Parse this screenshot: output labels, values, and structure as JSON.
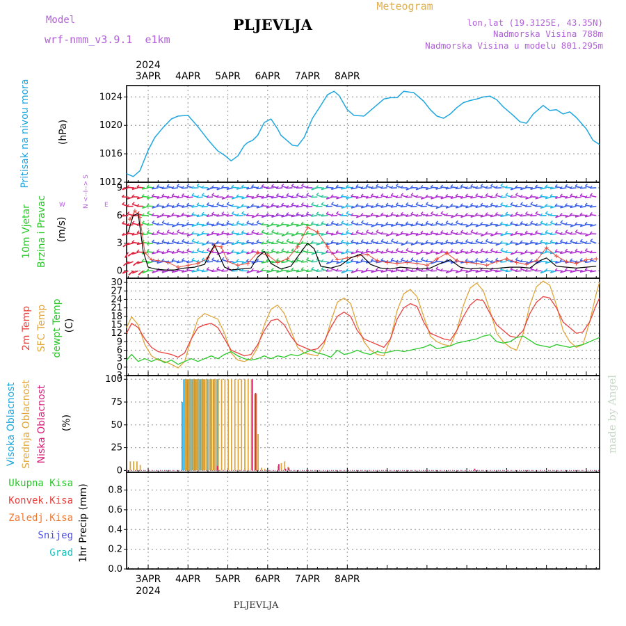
{
  "header": {
    "model_label": "Model",
    "model_name": "wrf-nmm_v3.9.1  e1km",
    "title": "PLJEVLJA",
    "product": "Meteogram",
    "coords": "lon,lat (19.3125E, 43.35N)",
    "elevation": "Nadmorska Visina 788m",
    "model_elevation": "Nadmorska Visina u modelu 801.295m"
  },
  "footer": {
    "station": "PLJEVLJA",
    "credit": "made by Angel"
  },
  "colors": {
    "pressure": "#1ea6e0",
    "temp2m": "#e8403c",
    "sfc_temp": "#e0a63a",
    "dewpoint": "#28c828",
    "high_cloud": "#1ea6e0",
    "mid_cloud": "#e0a63a",
    "low_cloud": "#d8207a",
    "gust": "#000000"
  },
  "chart_data": [
    {
      "type": "line",
      "panel": "pressure",
      "ylabel": [
        "Pritisak na nivou mora",
        "(hPa)"
      ],
      "year_label": "2024",
      "day_labels": [
        "3APR",
        "4APR",
        "5APR",
        "6APR",
        "7APR",
        "8APR"
      ],
      "x_range_hours": [
        -13,
        272
      ],
      "yticks": [
        1012,
        1016,
        1020,
        1024
      ],
      "ylim": [
        1012,
        1025.6
      ],
      "grid": true,
      "series": [
        {
          "x": [
            -13,
            -9,
            -5,
            0,
            4,
            9,
            14,
            18,
            24,
            30,
            36,
            40,
            42,
            46,
            50,
            54,
            58,
            60,
            63,
            66,
            70,
            74,
            78,
            80,
            83,
            87,
            90,
            94,
            99,
            104,
            108,
            112,
            115,
            118,
            120,
            124,
            130,
            136,
            142,
            146,
            150,
            154,
            160,
            166,
            170,
            174,
            178,
            182,
            186,
            190,
            194,
            198,
            202,
            206,
            210,
            214,
            220,
            224,
            228,
            232,
            238,
            242,
            246,
            250,
            254,
            258,
            264,
            268,
            272
          ],
          "y": [
            1013.2,
            1012.8,
            1013.6,
            1016.5,
            1018.3,
            1019.7,
            1020.9,
            1021.3,
            1021.4,
            1019.8,
            1018.0,
            1016.9,
            1016.4,
            1015.8,
            1015.0,
            1015.7,
            1017.2,
            1017.6,
            1017.9,
            1018.6,
            1020.4,
            1020.9,
            1019.5,
            1018.6,
            1018.0,
            1017.2,
            1017.1,
            1018.3,
            1021.0,
            1022.8,
            1024.3,
            1024.8,
            1024.2,
            1023.0,
            1022.2,
            1021.4,
            1021.3,
            1022.5,
            1023.7,
            1023.9,
            1023.9,
            1024.8,
            1024.6,
            1023.4,
            1022.2,
            1021.3,
            1021.0,
            1021.6,
            1022.5,
            1023.2,
            1023.5,
            1023.7,
            1024.0,
            1024.1,
            1023.6,
            1022.6,
            1021.4,
            1020.5,
            1020.3,
            1021.6,
            1022.8,
            1022.1,
            1022.2,
            1021.6,
            1021.9,
            1021.1,
            1019.5,
            1017.9,
            1017.3
          ]
        }
      ]
    },
    {
      "type": "line",
      "panel": "wind",
      "ylabel": [
        "10m Vjetar",
        "Brzina i Pravac",
        "(m/s)"
      ],
      "legend_directions": [
        "N",
        "W",
        "E",
        "S"
      ],
      "yticks": [
        0,
        3,
        6,
        9
      ],
      "ylim": [
        -0.8,
        9.6
      ],
      "grid": true,
      "barb_levels_ms": [
        0,
        1,
        2,
        3,
        4,
        5,
        6,
        7,
        8,
        9
      ],
      "series": [
        {
          "name": "speed",
          "x": [
            -11,
            -8,
            -5,
            -2,
            2,
            6,
            12,
            18,
            24,
            30,
            36,
            40,
            44,
            48,
            54,
            60,
            66,
            72,
            78,
            84,
            90,
            96,
            102,
            108,
            114,
            120,
            126,
            132,
            138,
            144,
            150,
            156,
            162,
            168,
            174,
            180,
            186,
            192,
            198,
            204,
            210,
            216,
            222,
            228,
            234,
            240,
            246,
            252,
            258,
            264,
            270
          ],
          "y": [
            5.6,
            6.5,
            5.8,
            2.0,
            1.2,
            1.1,
            0.9,
            0.4,
            0.6,
            0.8,
            1.4,
            2.7,
            2.6,
            1.0,
            0.6,
            0.8,
            2.0,
            1.7,
            0.9,
            1.3,
            2.6,
            4.7,
            4.2,
            2.6,
            1.2,
            1.4,
            1.6,
            1.8,
            1.1,
            0.9,
            0.8,
            0.9,
            0.8,
            0.6,
            1.3,
            1.9,
            1.1,
            0.9,
            0.8,
            0.6,
            1.0,
            1.3,
            0.9,
            0.7,
            1.1,
            2.5,
            1.6,
            1.0,
            0.8,
            1.2,
            1.3
          ]
        },
        {
          "name": "gust",
          "x": [
            -12,
            -9,
            -6,
            -3,
            0,
            4,
            10,
            16,
            22,
            28,
            34,
            38,
            40,
            42,
            46,
            50,
            56,
            62,
            66,
            70,
            74,
            80,
            86,
            92,
            96,
            100,
            104,
            110,
            116,
            122,
            128,
            134,
            140,
            146,
            152,
            158,
            164,
            170,
            176,
            182,
            188,
            194,
            200,
            206,
            212,
            218,
            224,
            230,
            236,
            240,
            246,
            252,
            258,
            264,
            270
          ],
          "y": [
            4.2,
            6.0,
            6.2,
            2.1,
            0.4,
            0.2,
            0.1,
            0.1,
            0.3,
            0.4,
            0.7,
            2.2,
            2.8,
            2.0,
            0.4,
            0.1,
            0.2,
            0.3,
            1.5,
            2.1,
            0.8,
            0.2,
            0.5,
            2.0,
            3.0,
            2.4,
            0.5,
            0.3,
            0.6,
            1.4,
            1.8,
            0.7,
            0.3,
            0.2,
            0.4,
            0.3,
            0.2,
            0.3,
            0.8,
            1.2,
            0.4,
            0.2,
            0.3,
            0.2,
            0.3,
            0.4,
            0.4,
            0.3,
            1.1,
            1.4,
            0.5,
            0.4,
            0.3,
            0.4,
            0.5
          ]
        }
      ]
    },
    {
      "type": "line",
      "panel": "temperature",
      "ylabel": [
        "2m Temp",
        "SFC Temp",
        "dewpt Temp",
        "(C)"
      ],
      "yticks": [
        -3,
        0,
        3,
        6,
        9,
        12,
        15,
        18,
        21,
        24,
        27,
        30
      ],
      "ylim": [
        -3,
        31.5
      ],
      "grid": true,
      "series": [
        {
          "name": "SFC Temp",
          "x": [
            -13,
            -10,
            -6,
            -2,
            2,
            6,
            10,
            14,
            18,
            22,
            26,
            30,
            34,
            38,
            42,
            46,
            50,
            54,
            58,
            62,
            66,
            70,
            74,
            78,
            82,
            86,
            90,
            94,
            98,
            102,
            106,
            110,
            114,
            118,
            122,
            126,
            130,
            134,
            138,
            142,
            146,
            150,
            154,
            158,
            162,
            166,
            170,
            174,
            178,
            182,
            186,
            190,
            194,
            198,
            202,
            206,
            210,
            214,
            218,
            222,
            226,
            230,
            234,
            238,
            242,
            246,
            250,
            254,
            258,
            262,
            266,
            270,
            272
          ],
          "y": [
            14.0,
            17.8,
            15.0,
            8.0,
            4.0,
            2.5,
            2.0,
            1.0,
            -0.3,
            2.0,
            10.0,
            17.0,
            19.0,
            18.0,
            17.0,
            12.0,
            5.0,
            2.5,
            2.0,
            3.0,
            7.0,
            15.0,
            20.5,
            22.0,
            19.0,
            13.0,
            7.0,
            5.0,
            4.5,
            4.0,
            8.0,
            16.0,
            23.0,
            24.5,
            22.5,
            15.0,
            9.0,
            6.0,
            4.5,
            4.0,
            10.0,
            20.0,
            26.0,
            27.5,
            25.0,
            18.0,
            11.0,
            9.0,
            8.0,
            7.5,
            13.0,
            22.0,
            28.0,
            29.8,
            27.0,
            20.0,
            12.0,
            9.0,
            7.0,
            6.0,
            12.0,
            22.0,
            28.5,
            30.5,
            29.0,
            22.0,
            13.0,
            9.0,
            7.0,
            8.0,
            16.0,
            26.0,
            30.2
          ]
        },
        {
          "name": "2m Temp",
          "x": [
            -13,
            -10,
            -6,
            -2,
            2,
            6,
            10,
            14,
            18,
            22,
            26,
            30,
            34,
            38,
            42,
            46,
            50,
            54,
            58,
            62,
            66,
            70,
            74,
            78,
            82,
            86,
            90,
            94,
            98,
            102,
            106,
            110,
            114,
            118,
            122,
            126,
            130,
            134,
            138,
            142,
            146,
            150,
            154,
            158,
            162,
            166,
            170,
            174,
            178,
            182,
            186,
            190,
            194,
            198,
            202,
            206,
            210,
            214,
            218,
            222,
            226,
            230,
            234,
            238,
            242,
            246,
            250,
            254,
            258,
            262,
            266,
            270,
            272
          ],
          "y": [
            12.0,
            15.5,
            14.0,
            10.0,
            7.0,
            5.5,
            5.0,
            4.5,
            3.5,
            5.0,
            10.0,
            14.0,
            15.0,
            15.5,
            14.0,
            10.0,
            6.0,
            5.0,
            4.0,
            4.5,
            8.0,
            13.0,
            16.5,
            17.0,
            15.0,
            11.0,
            8.0,
            7.0,
            6.0,
            6.5,
            9.0,
            14.0,
            18.0,
            19.5,
            18.0,
            13.0,
            10.0,
            9.0,
            8.0,
            7.0,
            10.0,
            17.0,
            21.0,
            22.5,
            21.5,
            16.0,
            12.0,
            11.0,
            10.0,
            9.5,
            13.0,
            18.0,
            22.0,
            24.0,
            23.5,
            19.0,
            15.0,
            13.0,
            11.0,
            10.5,
            13.0,
            19.0,
            23.0,
            25.0,
            24.5,
            21.0,
            16.0,
            14.0,
            12.0,
            12.5,
            16.0,
            22.0,
            24.5
          ]
        },
        {
          "name": "dewpt Temp",
          "x": [
            -13,
            -10,
            -6,
            -2,
            2,
            6,
            10,
            14,
            18,
            22,
            26,
            30,
            34,
            38,
            42,
            46,
            50,
            54,
            58,
            62,
            66,
            70,
            74,
            78,
            82,
            86,
            90,
            94,
            98,
            102,
            106,
            110,
            114,
            118,
            122,
            126,
            130,
            134,
            138,
            142,
            146,
            150,
            154,
            158,
            162,
            166,
            170,
            174,
            178,
            182,
            186,
            190,
            194,
            198,
            202,
            206,
            210,
            214,
            218,
            222,
            226,
            230,
            234,
            238,
            242,
            246,
            250,
            254,
            258,
            262,
            266,
            270,
            272
          ],
          "y": [
            2.5,
            4.5,
            2.0,
            3.0,
            2.0,
            3.0,
            1.5,
            2.5,
            1.0,
            2.0,
            3.0,
            2.0,
            3.0,
            4.0,
            3.0,
            4.5,
            5.5,
            4.0,
            3.0,
            2.5,
            3.0,
            4.0,
            3.0,
            4.0,
            3.5,
            4.5,
            4.0,
            5.0,
            6.0,
            5.0,
            4.5,
            3.5,
            6.0,
            4.5,
            5.0,
            6.0,
            5.0,
            4.5,
            5.5,
            5.0,
            5.5,
            6.0,
            5.5,
            6.0,
            6.5,
            7.0,
            8.0,
            6.5,
            7.0,
            7.5,
            8.5,
            9.0,
            9.5,
            10.0,
            11.0,
            11.5,
            9.0,
            8.5,
            9.0,
            10.5,
            11.0,
            9.5,
            8.0,
            7.5,
            7.0,
            8.0,
            7.5,
            7.0,
            7.5,
            8.0,
            9.0,
            10.0,
            10.5
          ]
        }
      ]
    },
    {
      "type": "bar",
      "panel": "cloud",
      "ylabel": [
        "Visoka Oblacnost",
        "Srednja Oblacnost",
        "Niska Oblacnost",
        "(%)"
      ],
      "yticks": [
        0,
        25,
        50,
        75,
        100
      ],
      "ylim": [
        -2,
        104
      ],
      "grid": true,
      "series": [
        {
          "name": "Visoka Oblacnost",
          "x": [
            21,
            22,
            23,
            24,
            25,
            26,
            27,
            28,
            29,
            30,
            31,
            32,
            33,
            34,
            36,
            38,
            40,
            42
          ],
          "values": [
            75,
            100,
            100,
            100,
            100,
            100,
            100,
            100,
            100,
            100,
            100,
            100,
            100,
            100,
            100,
            100,
            100,
            100
          ]
        },
        {
          "name": "Srednja Oblacnost",
          "x": [
            -11,
            -9,
            -7,
            -5,
            22,
            23,
            24,
            25,
            26,
            27,
            28,
            29,
            30,
            31,
            32,
            33,
            34,
            35,
            36,
            37,
            38,
            39,
            40,
            41,
            42,
            44,
            46,
            48,
            50,
            52,
            54,
            56,
            58,
            60,
            62,
            64,
            65,
            66,
            68,
            70,
            78,
            80,
            82,
            84
          ],
          "values": [
            10,
            10,
            10,
            6,
            100,
            100,
            100,
            100,
            100,
            100,
            100,
            100,
            100,
            100,
            100,
            100,
            100,
            100,
            100,
            100,
            100,
            100,
            100,
            100,
            100,
            100,
            100,
            100,
            100,
            100,
            100,
            100,
            100,
            100,
            100,
            84,
            84,
            40,
            3,
            2,
            5,
            8,
            10,
            4
          ]
        },
        {
          "name": "Niska Oblacnost",
          "x": [
            41,
            62,
            64,
            78,
            82,
            84,
            196
          ],
          "values": [
            5,
            100,
            85,
            7,
            2,
            3,
            2
          ]
        }
      ]
    },
    {
      "type": "bar",
      "panel": "precip",
      "ylabel": [
        "1hr Precip (mm)"
      ],
      "legend": [
        "Ukupna Kisa",
        "Konvek.Kisa",
        "Zaledj.Kisa",
        "Snijeg",
        "Grad"
      ],
      "legend_colors": [
        "#28c828",
        "#e8403c",
        "#f07830",
        "#5050e0",
        "#20c0c0"
      ],
      "yticks": [
        0,
        0.2,
        0.4,
        0.6,
        0.8
      ],
      "ylim": [
        0,
        0.98
      ],
      "grid": true,
      "series": [],
      "x_axis_labels": [
        "3APR",
        "4APR",
        "5APR",
        "6APR",
        "7APR",
        "8APR"
      ],
      "year_label": "2024"
    }
  ]
}
